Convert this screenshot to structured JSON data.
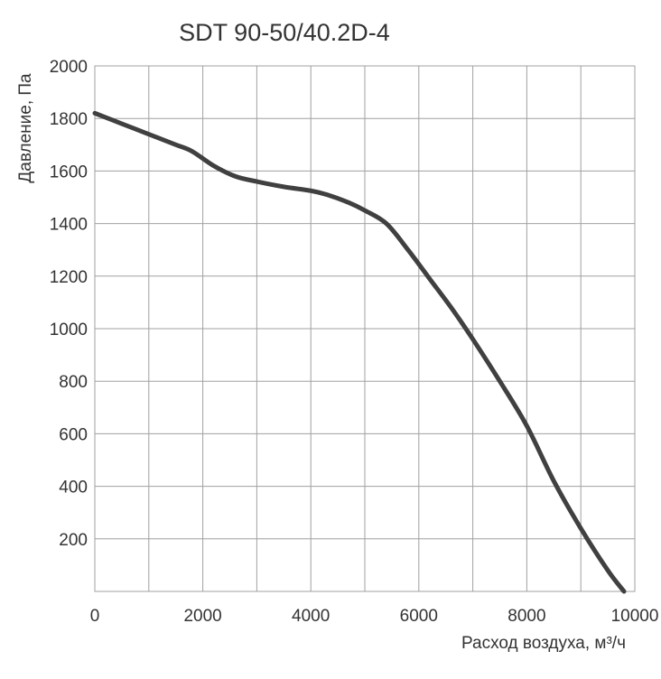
{
  "chart_data": {
    "type": "line",
    "title": "SDT 90-50/40.2D-4",
    "xlabel": "Расход воздуха, м³/ч",
    "ylabel": "Давление, Па",
    "xlim": [
      0,
      10000
    ],
    "ylim": [
      0,
      2000
    ],
    "x_ticks": [
      "0",
      "2000",
      "4000",
      "6000",
      "8000",
      "10000"
    ],
    "y_ticks": [
      "200",
      "400",
      "600",
      "800",
      "1000",
      "1200",
      "1400",
      "1600",
      "1800",
      "2000"
    ],
    "x_tick_values": [
      0,
      2000,
      4000,
      6000,
      8000,
      10000
    ],
    "y_tick_values": [
      200,
      400,
      600,
      800,
      1000,
      1200,
      1400,
      1600,
      1800,
      2000
    ],
    "grid": true,
    "grid_step_x": 1000,
    "grid_step_y": 200,
    "line_color": "#404040",
    "grid_color": "#a0a0a0",
    "series": [
      {
        "x": [
          0,
          500,
          1000,
          1500,
          1800,
          2200,
          2600,
          3000,
          3500,
          4000,
          4300,
          4700,
          5000,
          5400,
          5800,
          6200,
          6600,
          7000,
          7500,
          8000,
          8500,
          9000,
          9500,
          9800
        ],
        "y": [
          1820,
          1780,
          1740,
          1700,
          1675,
          1620,
          1580,
          1560,
          1540,
          1525,
          1510,
          1480,
          1450,
          1400,
          1300,
          1190,
          1080,
          960,
          800,
          630,
          420,
          240,
          80,
          0
        ]
      }
    ]
  }
}
